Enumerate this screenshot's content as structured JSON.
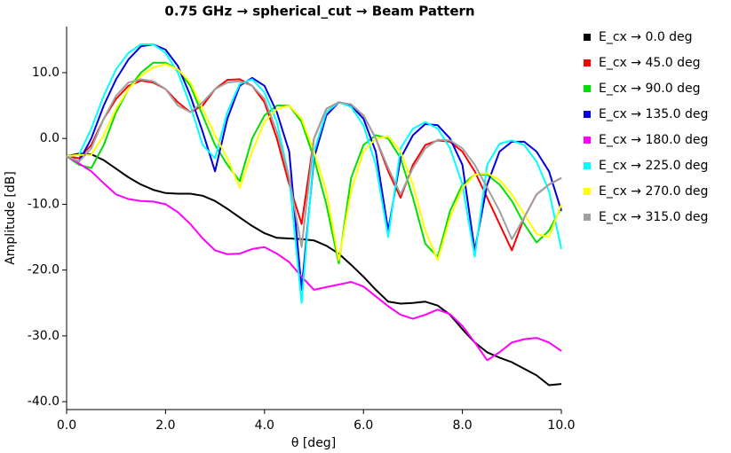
{
  "chart_data": {
    "type": "line",
    "title": "0.75 GHz → spherical_cut → Beam Pattern",
    "xlabel": "θ [deg]",
    "ylabel": "Amplitude [dB]",
    "xlim": [
      0,
      10
    ],
    "ylim": [
      -41.2,
      17
    ],
    "xticks": [
      {
        "value": 0,
        "label": "0.0"
      },
      {
        "value": 2,
        "label": "2.0"
      },
      {
        "value": 4,
        "label": "4.0"
      },
      {
        "value": 6,
        "label": "6.0"
      },
      {
        "value": 8,
        "label": "8.0"
      },
      {
        "value": 10,
        "label": "10.0"
      }
    ],
    "yticks": [
      {
        "value": -40,
        "label": "-40.0"
      },
      {
        "value": -30,
        "label": "-30.0"
      },
      {
        "value": -20,
        "label": "-20.0"
      },
      {
        "value": -10,
        "label": "-10.0"
      },
      {
        "value": 0,
        "label": "0.0"
      },
      {
        "value": 10,
        "label": "10.0"
      }
    ],
    "x": [
      0,
      0.25,
      0.5,
      0.75,
      1,
      1.25,
      1.5,
      1.75,
      2,
      2.25,
      2.5,
      2.75,
      3,
      3.25,
      3.5,
      3.75,
      4,
      4.25,
      4.5,
      4.75,
      5,
      5.25,
      5.5,
      5.75,
      6,
      6.25,
      6.5,
      6.75,
      7,
      7.25,
      7.5,
      7.75,
      8,
      8.25,
      8.5,
      8.75,
      9,
      9.25,
      9.5,
      9.75,
      10
    ],
    "series": [
      {
        "name": "E_cx → 0.0 deg",
        "color": "#000000",
        "values": [
          -2.7,
          -2.3,
          -2.4,
          -3.3,
          -4.6,
          -5.9,
          -7,
          -7.8,
          -8.3,
          -8.4,
          -8.4,
          -8.7,
          -9.5,
          -10.7,
          -12,
          -13.3,
          -14.4,
          -15.1,
          -15.2,
          -15.3,
          -15.5,
          -16.3,
          -17.5,
          -19.2,
          -21,
          -23,
          -24.8,
          -25.1,
          -25,
          -24.8,
          -25.4,
          -26.8,
          -29,
          -31,
          -32.5,
          -33.3,
          -34,
          -35,
          -36,
          -37.5,
          -37.3
        ]
      },
      {
        "name": "E_cx → 45.0 deg",
        "color": "#ff0000",
        "values": [
          -2.7,
          -3,
          -1,
          3,
          6,
          8,
          8.8,
          8.5,
          7.5,
          5.5,
          4,
          5,
          7.5,
          8.9,
          9,
          8,
          5.5,
          0,
          -7,
          -13,
          0,
          4.5,
          5.5,
          5,
          3.5,
          0,
          -5,
          -9,
          -4,
          -1,
          -0.3,
          -0.5,
          -2,
          -5,
          -9,
          -13,
          -17,
          -12,
          -8.5,
          -7,
          -6
        ]
      },
      {
        "name": "E_cx → 90.0 deg",
        "color": "#00e000",
        "values": [
          -2.7,
          -4,
          -4.5,
          -1,
          4,
          7.5,
          10,
          11.5,
          11.5,
          10.5,
          8,
          3.5,
          -1,
          -4,
          -6.5,
          0,
          3.5,
          5,
          5,
          2.5,
          -3,
          -10,
          -19,
          -6,
          -1,
          0.5,
          0,
          -3,
          -9,
          -16,
          -18,
          -11,
          -7,
          -5.5,
          -5.5,
          -7,
          -9.5,
          -13,
          -15.8,
          -14,
          -10.5
        ]
      },
      {
        "name": "E_cx → 135.0 deg",
        "color": "#0000e0",
        "values": [
          -2.7,
          -3.5,
          0,
          5,
          9,
          12,
          14,
          14.3,
          13.5,
          11,
          6.5,
          1,
          -5,
          3,
          8,
          9.2,
          8,
          4,
          -2,
          -23,
          -3,
          3.5,
          5.5,
          5,
          3,
          -2,
          -14,
          -3,
          0.5,
          2.2,
          2,
          0,
          -4,
          -17,
          -7,
          -2,
          -0.5,
          -0.5,
          -2,
          -5,
          -11
        ]
      },
      {
        "name": "E_cx → 180.0 deg",
        "color": "#ff00ff",
        "values": [
          -2.7,
          -3.8,
          -5,
          -6.8,
          -8.5,
          -9.2,
          -9.5,
          -9.6,
          -10,
          -11.2,
          -13,
          -15.2,
          -17,
          -17.6,
          -17.5,
          -16.8,
          -16.5,
          -17.5,
          -18.8,
          -21,
          -23,
          -22.6,
          -22.2,
          -21.8,
          -22.5,
          -24,
          -25.5,
          -26.8,
          -27.4,
          -26.8,
          -26,
          -26.7,
          -28.5,
          -31,
          -33.7,
          -32.5,
          -31,
          -30.5,
          -30.3,
          -31,
          -32.3
        ]
      },
      {
        "name": "E_cx → 225.0 deg",
        "color": "#00ffff",
        "values": [
          -2.7,
          -2.5,
          1.5,
          6.5,
          10.5,
          13,
          14.3,
          14.3,
          13,
          10,
          5,
          -1,
          -3,
          4,
          8.3,
          9,
          7,
          2.5,
          -6,
          -25,
          -2,
          4,
          5.5,
          4.8,
          2,
          -4,
          -15,
          -1.5,
          1.5,
          2.5,
          1.5,
          -1.5,
          -7,
          -18,
          -4,
          -0.8,
          -0.3,
          -1,
          -3.5,
          -8,
          -16.8
        ]
      },
      {
        "name": "E_cx → 270.0 deg",
        "color": "#ffff00",
        "values": [
          -2.7,
          -2.5,
          -2.5,
          0.5,
          4.5,
          7.5,
          9.5,
          10.8,
          11.3,
          10.5,
          8.5,
          4.5,
          0.5,
          -3,
          -7.5,
          -2,
          2.5,
          4.5,
          5,
          3,
          -2,
          -8,
          -18.5,
          -8,
          -2,
          0,
          0.3,
          -2,
          -7,
          -14,
          -18.5,
          -12,
          -7.5,
          -5.5,
          -5.3,
          -6.3,
          -8.5,
          -11.5,
          -14.5,
          -15,
          -10
        ]
      },
      {
        "name": "E_cx → 315.0 deg",
        "color": "#a0a0a0",
        "values": [
          -2.7,
          -3.5,
          -1.5,
          3,
          6.5,
          8.5,
          9,
          8.7,
          7.5,
          5,
          4,
          5.5,
          7.5,
          8.5,
          8.7,
          8,
          6,
          1,
          -6,
          -16.5,
          0,
          4.5,
          5.5,
          5.2,
          3.5,
          0,
          -4.5,
          -8.5,
          -4.5,
          -1.5,
          -0.2,
          -0.3,
          -1.5,
          -4,
          -7.5,
          -11,
          -15.3,
          -12,
          -8.5,
          -7,
          -6
        ]
      }
    ]
  }
}
